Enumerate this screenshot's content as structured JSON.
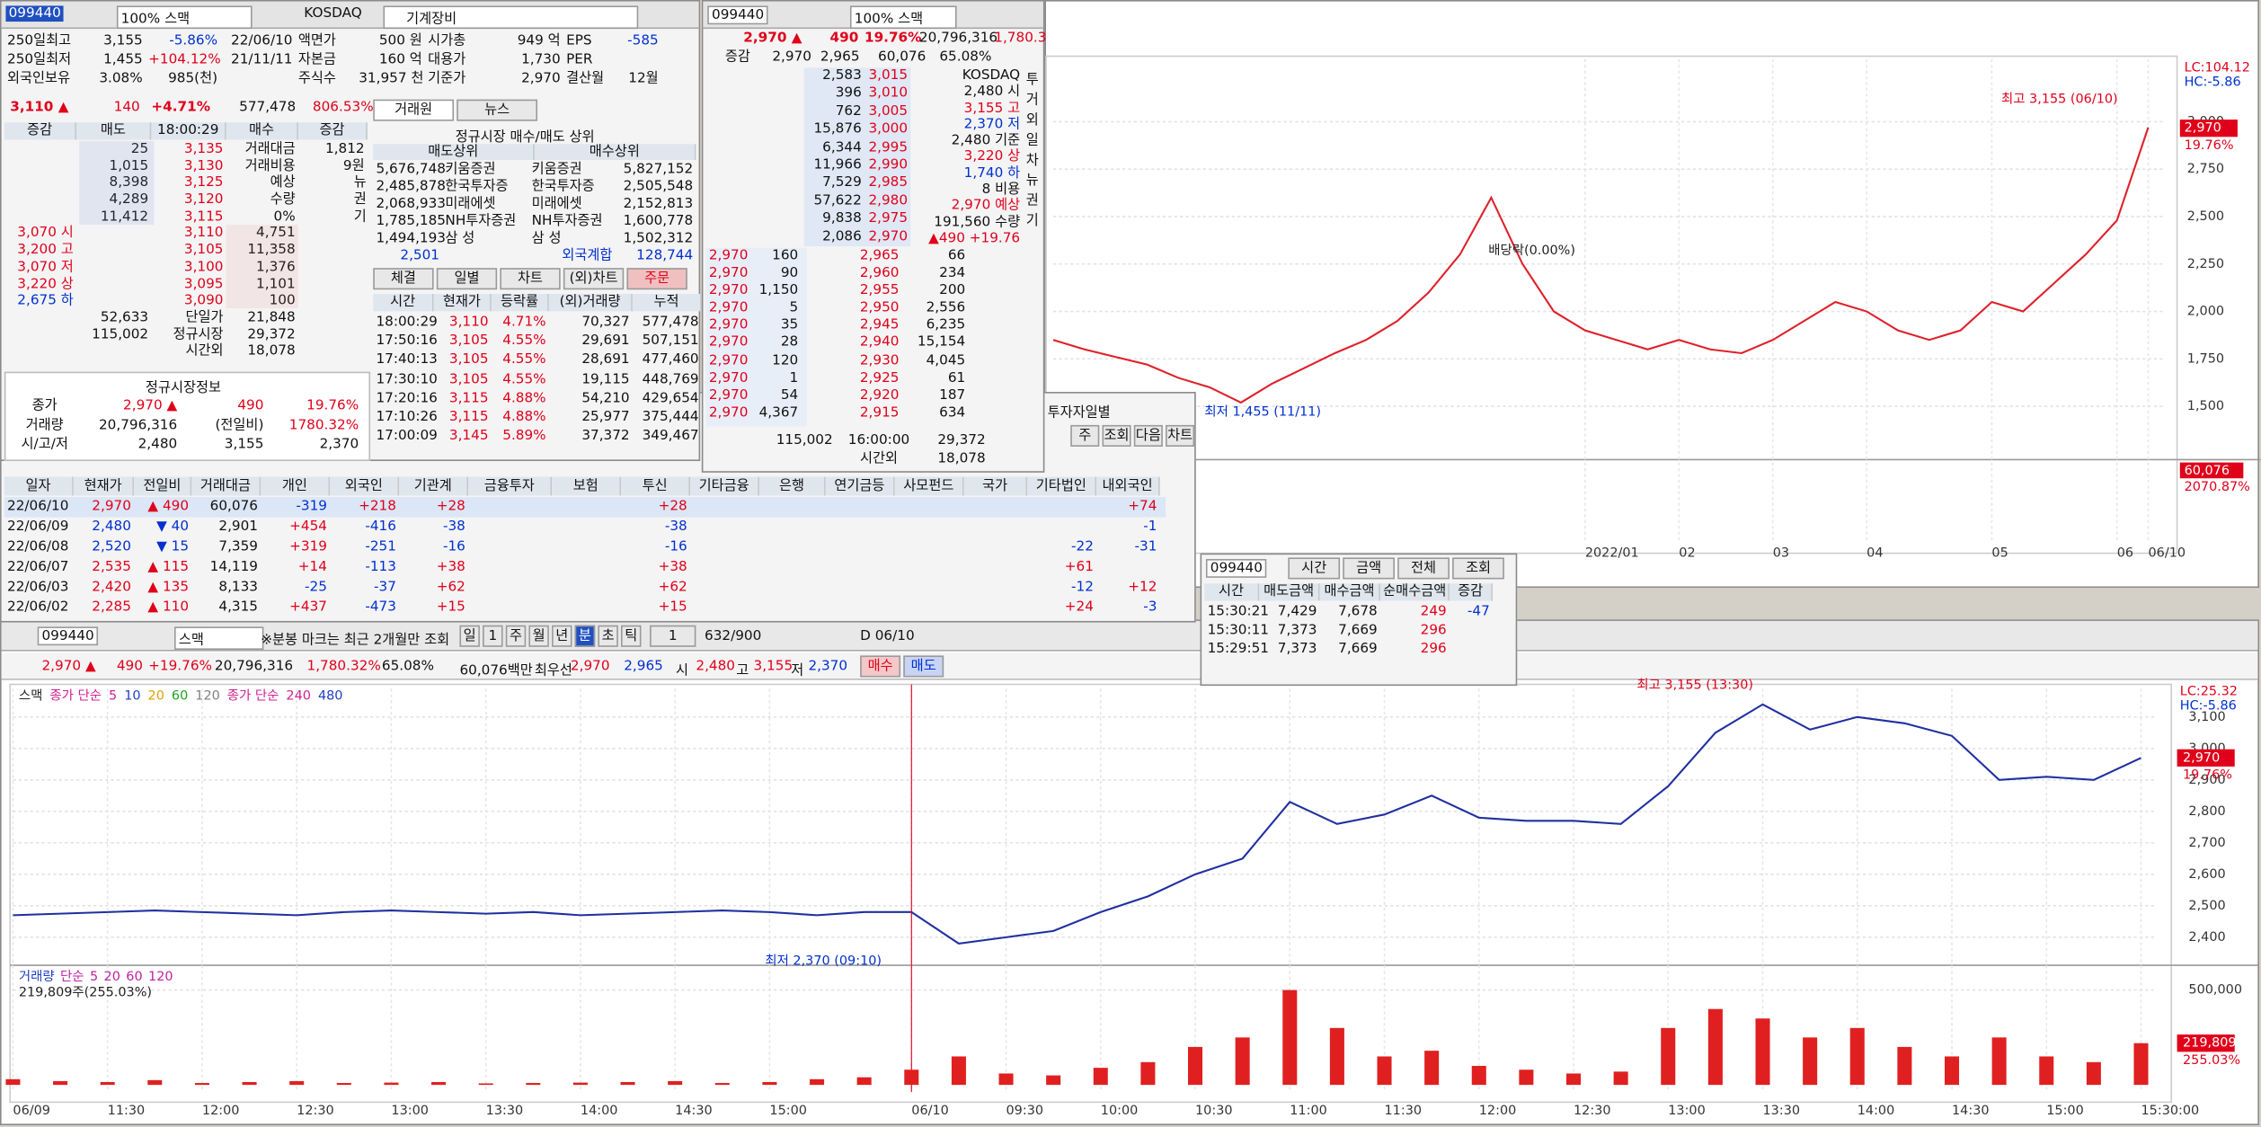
{
  "stock_panel": {
    "code": "099440",
    "name": "100% 스맥",
    "market": "KOSDAQ",
    "sector": "기계장비",
    "info": {
      "rows": [
        [
          "250일최고",
          "3,155",
          "-5.86%",
          "22/06/10",
          "액면가",
          "500 원",
          "시가총",
          "949 억",
          "EPS",
          "-585"
        ],
        [
          "250일최저",
          "1,455",
          "+104.12%",
          "21/11/11",
          "자본금",
          "160 억",
          "대용가",
          "1,730",
          "PER",
          null
        ],
        [
          "외국인보유",
          "3.08%",
          "985(천)",
          null,
          "주식수",
          "31,957 천",
          "기준가",
          "2,970",
          "결산월",
          "12월"
        ]
      ]
    },
    "quote": [
      "3,110 ▲",
      "140",
      "+4.71%",
      "577,478",
      "806.53%"
    ],
    "book": {
      "header": [
        "증감",
        "매도",
        "18:00:29",
        "매수",
        "증감"
      ],
      "rows": [
        [
          null,
          "25",
          "3,135",
          "거래대금",
          "1,812"
        ],
        [
          null,
          "1,015",
          "3,130",
          "거래비용",
          "9원"
        ],
        [
          null,
          "8,398",
          "3,125",
          "예상",
          null
        ],
        [
          null,
          "4,289",
          "3,120",
          "수량",
          null
        ],
        [
          null,
          "11,412",
          "3,115",
          "0%",
          null
        ],
        [
          "3,070 시",
          null,
          "3,110",
          "4,751",
          null
        ],
        [
          "3,200 고",
          null,
          "3,105",
          "11,358",
          null
        ],
        [
          "3,070 저",
          null,
          "3,100",
          "1,376",
          null
        ],
        [
          "3,220 상",
          null,
          "3,095",
          "1,101",
          null
        ],
        [
          "2,675 하",
          null,
          "3,090",
          "100",
          null
        ],
        [
          null,
          "52,633",
          "단일가",
          "21,848",
          null
        ],
        [
          null,
          "115,002",
          "정규시장",
          "29,372",
          null
        ],
        [
          null,
          null,
          "시간외",
          "18,078",
          null
        ]
      ],
      "side": [
        "뉴",
        "권",
        "기"
      ]
    },
    "broker": {
      "tabs": [
        "거래원",
        "뉴스"
      ],
      "title": "정규시장 매수/매도 상위",
      "header": [
        "매도상위",
        "매수상위"
      ],
      "rows": [
        [
          "5,676,748",
          "키움증권",
          "키움증권",
          "5,827,152"
        ],
        [
          "2,485,878",
          "한국투자증",
          "한국투자증",
          "2,505,548"
        ],
        [
          "2,068,933",
          "미래에셋",
          "미래에셋",
          "2,152,813"
        ],
        [
          "1,785,185",
          "NH투자증권",
          "NH투자증권",
          "1,600,778"
        ],
        [
          "1,494,193",
          "삼 성",
          "삼 성",
          "1,502,312"
        ]
      ],
      "foreign": [
        "2,501",
        "외국계합",
        "128,744"
      ]
    },
    "trade": {
      "tabs": [
        "체결",
        "일별",
        "차트",
        "(외)차트",
        "주문"
      ],
      "header": [
        "시간",
        "현재가",
        "등락률",
        "(외)거래량",
        "누적"
      ],
      "rows": [
        [
          "18:00:29",
          "3,110",
          "4.71%",
          "70,327",
          "577,478"
        ],
        [
          "17:50:16",
          "3,105",
          "4.55%",
          "29,691",
          "507,151"
        ],
        [
          "17:40:13",
          "3,105",
          "4.55%",
          "28,691",
          "477,460"
        ],
        [
          "17:30:10",
          "3,105",
          "4.55%",
          "19,115",
          "448,769"
        ],
        [
          "17:20:16",
          "3,115",
          "4.88%",
          "54,210",
          "429,654"
        ],
        [
          "17:10:26",
          "3,115",
          "4.88%",
          "25,977",
          "375,444"
        ],
        [
          "17:00:09",
          "3,145",
          "5.89%",
          "37,372",
          "349,467"
        ]
      ]
    },
    "session": {
      "title": "정규시장정보",
      "rows": [
        [
          "종가",
          "2,970 ▲",
          "490",
          "19.76%"
        ],
        [
          "거래량",
          "20,796,316",
          "(전일비)",
          "1780.32%"
        ],
        [
          "시/고/저",
          "2,480",
          "3,155",
          "2,370"
        ]
      ]
    }
  },
  "order_panel": {
    "code": "099440",
    "name": "100% 스맥",
    "quote": [
      "2,970 ▲",
      "490",
      "19.76%",
      "20,796,316",
      "1,780.3"
    ],
    "header": [
      "증감",
      "2,970",
      "2,965",
      "60,076",
      "65.08%"
    ],
    "asks": [
      [
        "2,583",
        "3,015"
      ],
      [
        "396",
        "3,010"
      ],
      [
        "762",
        "3,005"
      ],
      [
        "15,876",
        "3,000"
      ],
      [
        "6,344",
        "2,995"
      ],
      [
        "11,966",
        "2,990"
      ],
      [
        "7,529",
        "2,985"
      ],
      [
        "57,622",
        "2,980"
      ],
      [
        "9,838",
        "2,975"
      ],
      [
        "2,086",
        "2,970"
      ]
    ],
    "info": [
      "KOSDAQ",
      "2,480 시",
      "3,155 고",
      "2,370 저",
      "2,480 기준",
      "3,220 상",
      "1,740 하",
      "8 비용",
      "2,970 예상",
      "191,560 수량",
      "▲490 +19.76"
    ],
    "side": [
      "투",
      "거",
      "외",
      "일",
      "차",
      "뉴",
      "권",
      "기"
    ],
    "ticks": [
      [
        "2,970",
        "160"
      ],
      [
        "2,970",
        "90"
      ],
      [
        "2,970",
        "1,150"
      ],
      [
        "2,970",
        "5"
      ],
      [
        "2,970",
        "35"
      ],
      [
        "2,970",
        "28"
      ],
      [
        "2,970",
        "120"
      ],
      [
        "2,970",
        "1"
      ],
      [
        "2,970",
        "54"
      ],
      [
        "2,970",
        "4,367"
      ]
    ],
    "bids": [
      [
        "2,965",
        "66"
      ],
      [
        "2,960",
        "234"
      ],
      [
        "2,955",
        "200"
      ],
      [
        "2,950",
        "2,556"
      ],
      [
        "2,945",
        "6,235"
      ],
      [
        "2,940",
        "15,154"
      ],
      [
        "2,930",
        "4,045"
      ],
      [
        "2,925",
        "61"
      ],
      [
        "2,920",
        "187"
      ],
      [
        "2,915",
        "634"
      ]
    ],
    "totals": [
      [
        "115,002",
        "16:00:00",
        "29,372"
      ],
      [
        null,
        "시간외",
        "18,078"
      ]
    ]
  },
  "investor": {
    "tab": "투자자일별",
    "buttons": [
      "주",
      "조회",
      "다음",
      "차트"
    ],
    "header": [
      "일자",
      "현재가",
      "전일비",
      "거래대금",
      "개인",
      "외국인",
      "기관계",
      "금융투자",
      "보험",
      "투신",
      "기타금융",
      "은행",
      "연기금등",
      "사모펀드",
      "국가",
      "기타법인",
      "내외국인"
    ],
    "rows": [
      [
        "22/06/10",
        "2,970",
        "▲ 490",
        "60,076",
        "-319",
        "+218",
        "+28",
        null,
        null,
        "+28",
        null,
        null,
        null,
        null,
        null,
        null,
        "+74"
      ],
      [
        "22/06/09",
        "2,480",
        "▼ 40",
        "2,901",
        "+454",
        "-416",
        "-38",
        null,
        null,
        "-38",
        null,
        null,
        null,
        null,
        null,
        null,
        "-1"
      ],
      [
        "22/06/08",
        "2,520",
        "▼ 15",
        "7,359",
        "+319",
        "-251",
        "-16",
        null,
        null,
        "-16",
        null,
        null,
        null,
        null,
        null,
        "-22",
        "-31"
      ],
      [
        "22/06/07",
        "2,535",
        "▲ 115",
        "14,119",
        "+14",
        "-113",
        "+38",
        null,
        null,
        "+38",
        null,
        null,
        null,
        null,
        null,
        "+61",
        null
      ],
      [
        "22/06/03",
        "2,420",
        "▲ 135",
        "8,133",
        "-25",
        "-37",
        "+62",
        null,
        null,
        "+62",
        null,
        null,
        null,
        null,
        null,
        "-12",
        "+12"
      ],
      [
        "22/06/02",
        "2,285",
        "▲ 110",
        "4,315",
        "+437",
        "-473",
        "+15",
        null,
        null,
        "+15",
        null,
        null,
        null,
        null,
        null,
        "+24",
        "-3"
      ]
    ]
  },
  "time_sale": {
    "code": "099440",
    "controls": [
      "시간",
      "금액",
      "전체",
      "조회"
    ],
    "header": [
      "시간",
      "매도금액",
      "매수금액",
      "순매수금액",
      "증감"
    ],
    "rows": [
      [
        "15:30:21",
        "7,429",
        "7,678",
        "249",
        "-47"
      ],
      [
        "15:30:11",
        "7,373",
        "7,669",
        "296",
        null
      ],
      [
        "15:29:51",
        "7,373",
        "7,669",
        "296",
        null
      ]
    ]
  },
  "intraday_toolbar": {
    "code": "099440",
    "name": "스맥",
    "note": "※분봉 마크는 최근 2개월만 조회",
    "periods": [
      "일",
      "1",
      "주",
      "월",
      "년",
      "분",
      "초",
      "틱"
    ],
    "count": "1",
    "range": "632/900",
    "date": "D 06/10",
    "quote": [
      "2,970 ▲",
      "490",
      "+19.76%",
      "20,796,316",
      "1,780.32%",
      "65.08%",
      "60,076백만",
      "최우선",
      "2,970",
      "2,965",
      "시",
      "2,480",
      "고",
      "3,155",
      "저",
      "2,370"
    ],
    "buttons": [
      "매수",
      "매도"
    ]
  },
  "chart_data": [
    {
      "type": "line",
      "color": "#e0202a",
      "categories": [
        null,
        null,
        null,
        null,
        null,
        null,
        null,
        null,
        null,
        null,
        null,
        null,
        null,
        null,
        null,
        null,
        null,
        "2022/01",
        null,
        null,
        "02",
        null,
        null,
        "03",
        null,
        null,
        "04",
        null,
        null,
        null,
        "05",
        null,
        null,
        null,
        "06",
        "06/10"
      ],
      "values": [
        1850,
        1800,
        1760,
        1720,
        1650,
        1600,
        1520,
        1620,
        1700,
        1780,
        1850,
        1950,
        2100,
        2300,
        2600,
        2250,
        2000,
        1900,
        1850,
        1800,
        1850,
        1800,
        1780,
        1850,
        1950,
        2050,
        2000,
        1900,
        1850,
        1900,
        2050,
        2000,
        2150,
        2300,
        2480,
        2970
      ],
      "ylim": [
        1280,
        3330
      ],
      "yticks": [
        {
          "value": 1500,
          "label": "1,500"
        },
        {
          "value": 1750,
          "label": "1,750"
        },
        {
          "value": 2000,
          "label": "2,000"
        },
        {
          "value": 2250,
          "label": "2,250"
        },
        {
          "value": 2500,
          "label": "2,500"
        },
        {
          "value": 2750,
          "label": "2,750"
        },
        {
          "value": 3000,
          "label": "3,000"
        }
      ],
      "grid": true,
      "corner_labels": [
        "LC:104.12",
        "HC:-5.86"
      ],
      "last_labels": [
        "2,970",
        "19.76%"
      ],
      "annotations": [
        "최고 3,155 (06/10)",
        "최저 1,455 (11/11)",
        "배당락(0.00%)"
      ],
      "volume_labels": [
        "60,076",
        "2070.87%"
      ]
    },
    {
      "type": "line",
      "color": "#2030a0",
      "categories": [
        "06/09",
        null,
        "11:30",
        null,
        "12:00",
        null,
        "12:30",
        null,
        "13:00",
        null,
        "13:30",
        null,
        "14:00",
        null,
        "14:30",
        null,
        "15:00",
        null,
        null,
        "06/10",
        null,
        "09:30",
        null,
        "10:00",
        null,
        "10:30",
        null,
        "11:00",
        null,
        "11:30",
        null,
        "12:00",
        null,
        "12:30",
        null,
        "13:00",
        null,
        "13:30",
        null,
        "14:00",
        null,
        "14:30",
        null,
        "15:00",
        null,
        "15:30:00"
      ],
      "values": [
        2470,
        2475,
        2480,
        2485,
        2480,
        2475,
        2470,
        2480,
        2485,
        2480,
        2475,
        2480,
        2470,
        2475,
        2480,
        2485,
        2480,
        2470,
        2480,
        2480,
        2380,
        2400,
        2420,
        2480,
        2530,
        2600,
        2650,
        2830,
        2760,
        2790,
        2850,
        2780,
        2770,
        2770,
        2760,
        2880,
        3050,
        3140,
        3060,
        3100,
        3080,
        3040,
        2900,
        2910,
        2900,
        2970
      ],
      "ylim": [
        2320,
        3190
      ],
      "yticks": [
        {
          "value": 2400,
          "label": "2,400"
        },
        {
          "value": 2500,
          "label": "2,500"
        },
        {
          "value": 2600,
          "label": "2,600"
        },
        {
          "value": 2700,
          "label": "2,700"
        },
        {
          "value": 2800,
          "label": "2,800"
        },
        {
          "value": 2900,
          "label": "2,900"
        },
        {
          "value": 3000,
          "label": "3,000"
        },
        {
          "value": 3100,
          "label": "3,100"
        }
      ],
      "grid": true,
      "legend": [
        {
          "text": "스맥",
          "color": "#222"
        },
        {
          "text": "종가 단순",
          "color": "#d02090"
        },
        {
          "text": "5",
          "color": "#d02090"
        },
        {
          "text": "10",
          "color": "#2040c0"
        },
        {
          "text": "20",
          "color": "#e0a000"
        },
        {
          "text": "60",
          "color": "#20a020"
        },
        {
          "text": "120",
          "color": "#808080"
        },
        {
          "text": "종가 단순",
          "color": "#d02090"
        },
        {
          "text": "240",
          "color": "#d02090"
        },
        {
          "text": "480",
          "color": "#2040c0"
        }
      ],
      "corner_labels": [
        "LC:25.32",
        "HC:-5.86"
      ],
      "last_labels": [
        "2,970",
        "19.76%"
      ],
      "annotations": [
        "최고 3,155 (13:30)",
        "최저 2,370 (09:10)"
      ],
      "volume": {
        "legend": [
          "거래량",
          "단순",
          "5",
          "20",
          "60",
          "120"
        ],
        "info": "219,809주(255.03%)",
        "color": "#e02020",
        "values": [
          30000,
          20000,
          15000,
          25000,
          10000,
          15000,
          20000,
          10000,
          12000,
          15000,
          8000,
          10000,
          12000,
          15000,
          20000,
          10000,
          15000,
          30000,
          40000,
          80000,
          150000,
          60000,
          50000,
          90000,
          120000,
          200000,
          250000,
          500000,
          300000,
          150000,
          180000,
          100000,
          80000,
          60000,
          70000,
          300000,
          400000,
          350000,
          250000,
          300000,
          200000,
          150000,
          250000,
          150000,
          120000,
          219809
        ],
        "ylim": [
          0,
          600000
        ],
        "yticks": [
          {
            "value": 500000,
            "label": "500,000"
          }
        ],
        "last_labels": [
          "219,809",
          "255.03%"
        ]
      }
    }
  ]
}
